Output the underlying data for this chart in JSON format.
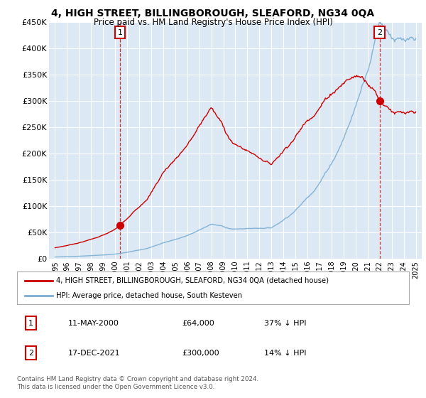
{
  "title": "4, HIGH STREET, BILLINGBOROUGH, SLEAFORD, NG34 0QA",
  "subtitle": "Price paid vs. HM Land Registry's House Price Index (HPI)",
  "background_color": "#ffffff",
  "plot_bg_color": "#dce9f5",
  "grid_color": "#ffffff",
  "hpi_color": "#7aadd4",
  "price_color": "#cc0000",
  "legend_label1": "4, HIGH STREET, BILLINGBOROUGH, SLEAFORD, NG34 0QA (detached house)",
  "legend_label2": "HPI: Average price, detached house, South Kesteven",
  "footer": "Contains HM Land Registry data © Crown copyright and database right 2024.\nThis data is licensed under the Open Government Licence v3.0.",
  "t1_date": "11-MAY-2000",
  "t1_price": "£64,000",
  "t1_pct": "37% ↓ HPI",
  "t2_date": "17-DEC-2021",
  "t2_price": "£300,000",
  "t2_pct": "14% ↓ HPI",
  "t1_price_val": 64000,
  "t2_price_val": 300000,
  "t1_year": 2000.37,
  "t2_year": 2021.96,
  "ylim": [
    0,
    450000
  ],
  "xlim_lo": 1994.5,
  "xlim_hi": 2025.5
}
